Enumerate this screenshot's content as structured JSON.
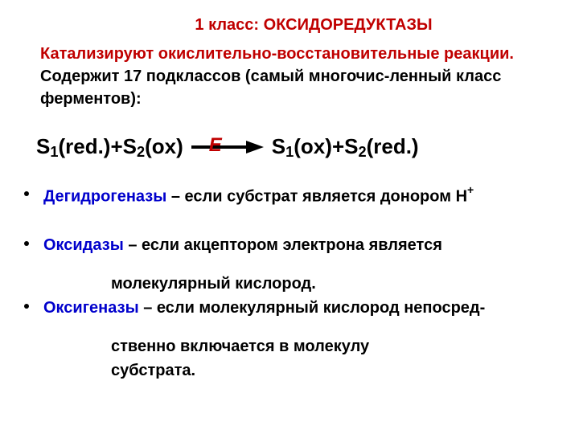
{
  "colors": {
    "title_red": "#c00000",
    "intro_red": "#c00000",
    "equation_E_red": "#c00000",
    "term_blue": "#0000cc",
    "black": "#000000",
    "arrow_fill": "#000000"
  },
  "fontsizes": {
    "title": 20,
    "intro": 20,
    "equation": 26,
    "bullets": 20
  },
  "title": "1 класс: ОКСИДОРЕДУКТАЗЫ",
  "intro": {
    "red_part": "Катализируют окислительно-восстановительные реакции.",
    "black_part": " Содержит 17 подклассов (самый многочис-ленный класс ферментов):"
  },
  "equation": {
    "lhs": {
      "s1": "S",
      "s1_sub": "1",
      "s1_state": "(red.)",
      "plus": " + ",
      "s2": "S",
      "s2_sub": "2",
      "s2_state": "(ox)"
    },
    "arrow_label": "Е",
    "rhs": {
      "s1": "S",
      "s1_sub": "1",
      "s1_state": "(ox)",
      "plus": " + ",
      "s2": "S",
      "s2_sub": "2",
      "s2_state": " (red.)"
    },
    "arrow": {
      "width": 90,
      "height": 16
    }
  },
  "bullets": [
    {
      "name": "Дегидрогеназы",
      "desc_pre": " – если субстрат является донором Н",
      "sup": "+",
      "cont": []
    },
    {
      "name": "Оксидазы",
      "desc_pre": " – если акцептором электрона является",
      "sup": "",
      "cont": [
        "молекулярный кислород."
      ]
    },
    {
      "name": "Оксигеназы",
      "desc_pre": " – если молекулярный кислород непосред-",
      "sup": "",
      "cont": [
        "ственно включается в молекулу",
        "субстрата."
      ]
    }
  ]
}
